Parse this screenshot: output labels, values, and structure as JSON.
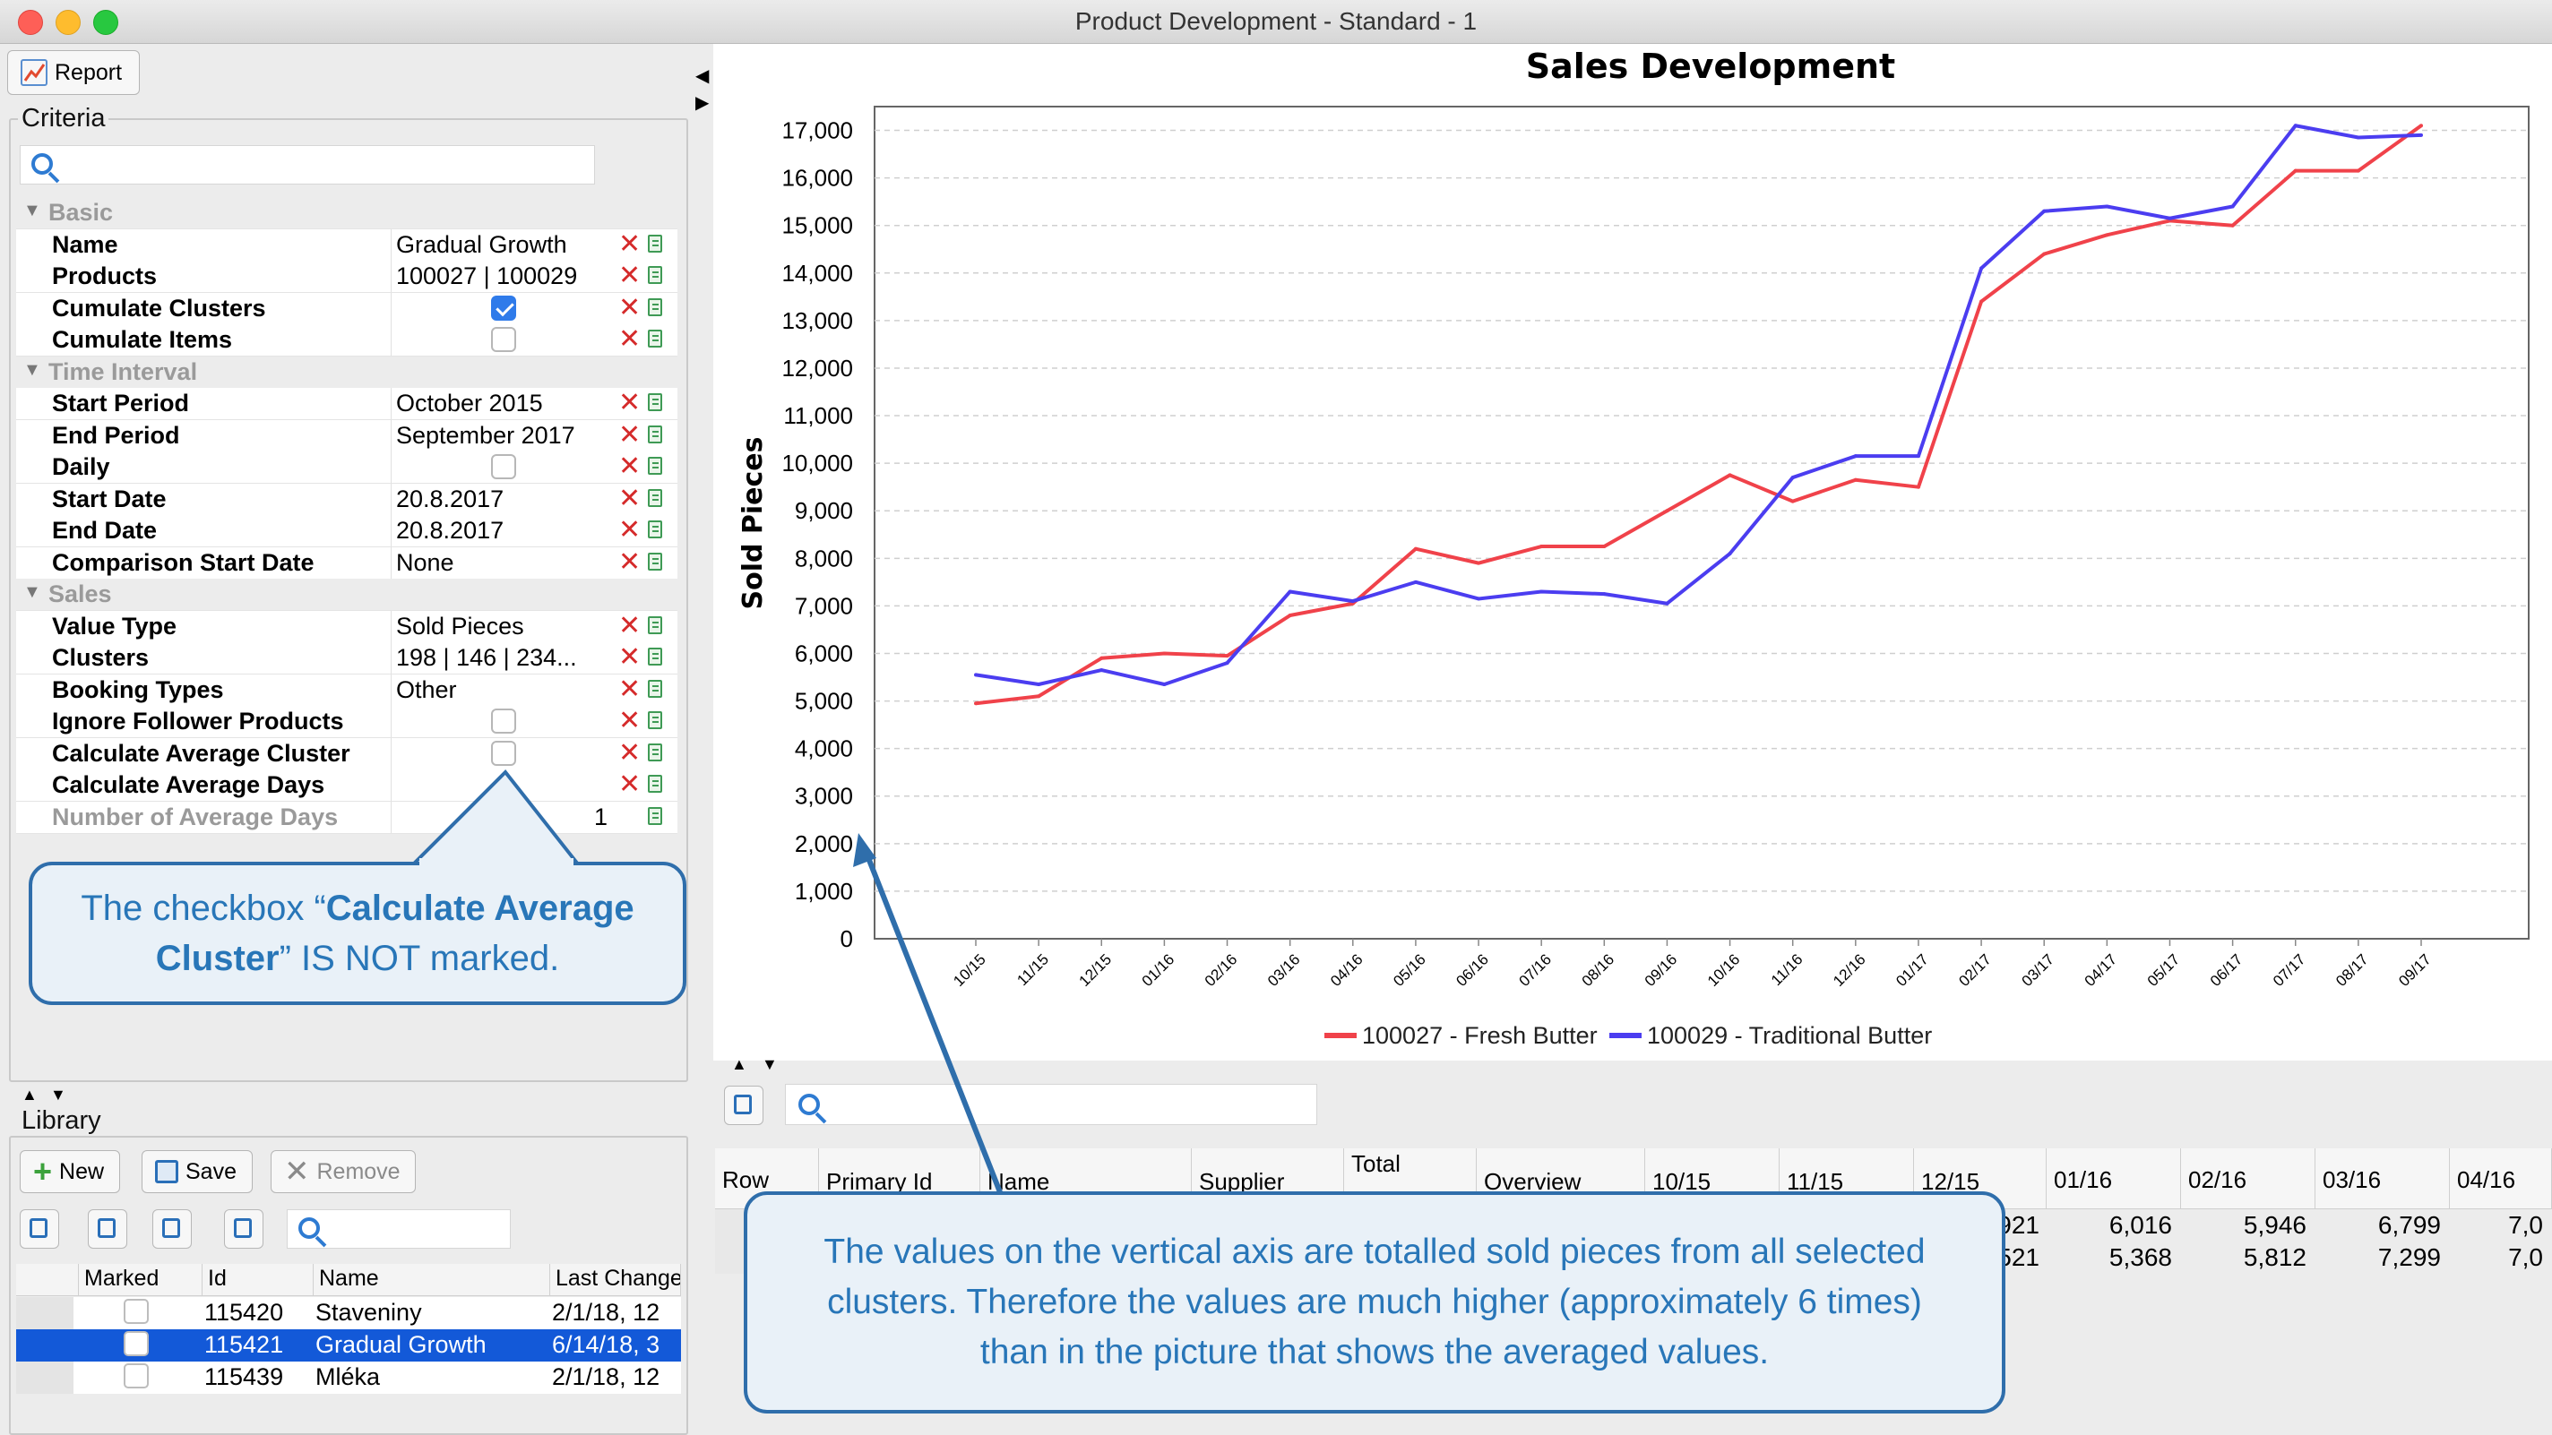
{
  "window": {
    "title": "Product Development - Standard - 1"
  },
  "left": {
    "report_button": "Report",
    "criteria_title": "Criteria",
    "sections": [
      {
        "title": "Basic",
        "rows": [
          {
            "label": "Name",
            "value": "Gradual Growth"
          },
          {
            "label": "Products",
            "value": "100027 | 100029"
          },
          {
            "label": "Cumulate Clusters",
            "checkbox": true
          },
          {
            "label": "Cumulate Items",
            "checkbox": false
          }
        ]
      },
      {
        "title": "Time Interval",
        "rows": [
          {
            "label": "Start Period",
            "value": "October 2015"
          },
          {
            "label": "End Period",
            "value": "September 2017"
          },
          {
            "label": "Daily",
            "checkbox": false
          },
          {
            "label": "Start Date",
            "value": "20.8.2017"
          },
          {
            "label": "End Date",
            "value": "20.8.2017"
          },
          {
            "label": "Comparison Start Date",
            "value": "None"
          }
        ]
      },
      {
        "title": "Sales",
        "rows": [
          {
            "label": "Value Type",
            "value": "Sold Pieces"
          },
          {
            "label": "Clusters",
            "value": "198 | 146 | 234..."
          },
          {
            "label": "Booking Types",
            "value": "Other"
          },
          {
            "label": "Ignore Follower Products",
            "checkbox": false
          },
          {
            "label": "Calculate Average Cluster",
            "checkbox": false
          },
          {
            "label": "Calculate Average Days",
            "value": ""
          },
          {
            "label": "Number of Average Days",
            "value": "1",
            "disabled": true
          }
        ]
      }
    ],
    "library_title": "Library",
    "library_buttons": {
      "new": "New",
      "save": "Save",
      "remove": "Remove"
    },
    "library_columns": [
      "Marked",
      "Id",
      "Name",
      "Last Change"
    ],
    "library_rows": [
      {
        "id": "115420",
        "name": "Staveniny",
        "last_change": "2/1/18, 12",
        "selected": false
      },
      {
        "id": "115421",
        "name": "Gradual Growth",
        "last_change": "6/14/18, 3",
        "selected": true
      },
      {
        "id": "115439",
        "name": "Mléka",
        "last_change": "2/1/18, 12",
        "selected": false
      }
    ]
  },
  "chart_data": {
    "type": "line",
    "title": "Sales Development",
    "ylabel": "Sold Pieces",
    "xlabel": "",
    "ylim": [
      0,
      17500
    ],
    "yticks": [
      "0",
      "1,000",
      "2,000",
      "3,000",
      "4,000",
      "5,000",
      "6,000",
      "7,000",
      "8,000",
      "9,000",
      "10,000",
      "11,000",
      "12,000",
      "13,000",
      "14,000",
      "15,000",
      "16,000",
      "17,000"
    ],
    "categories": [
      "10/15",
      "11/15",
      "12/15",
      "01/16",
      "02/16",
      "03/16",
      "04/16",
      "05/16",
      "06/16",
      "07/16",
      "08/16",
      "09/16",
      "10/16",
      "11/16",
      "12/16",
      "01/17",
      "02/17",
      "03/17",
      "04/17",
      "05/17",
      "06/17",
      "07/17",
      "08/17",
      "09/17"
    ],
    "series": [
      {
        "name": "100027 - Fresh Butter",
        "color": "#f0424a",
        "values": [
          4950,
          5100,
          5900,
          6000,
          5950,
          6800,
          7050,
          8200,
          7900,
          8250,
          8250,
          9000,
          9750,
          9200,
          9650,
          9500,
          13400,
          14400,
          14800,
          15100,
          15000,
          16150,
          16150,
          17100
        ]
      },
      {
        "name": "100029 - Traditional Butter",
        "color": "#4b3df0",
        "values": [
          5550,
          5350,
          5650,
          5350,
          5800,
          7300,
          7100,
          7500,
          7150,
          7300,
          7250,
          7050,
          8100,
          9700,
          10150,
          10150,
          14100,
          15300,
          15400,
          15150,
          15400,
          17100,
          16850,
          16900
        ]
      }
    ],
    "grid": true,
    "legend": "bottom"
  },
  "table": {
    "columns": [
      "Row",
      "Primary Id",
      "Name",
      "Supplier",
      "Total",
      "Overview",
      "10/15",
      "11/15",
      "12/15",
      "01/16",
      "02/16",
      "03/16",
      "04/16"
    ],
    "rows": [
      {
        "c1215": "921",
        "c0116": "6,016",
        "c0216": "5,946",
        "c0316": "6,799",
        "c0416": "7,0"
      },
      {
        "c1215": "521",
        "c0116": "5,368",
        "c0216": "5,812",
        "c0316": "7,299",
        "c0416": "7,0"
      }
    ]
  },
  "callouts": {
    "checkbox": {
      "pre": "The checkbox “",
      "bold": "Calculate Average Cluster",
      "post": "” IS NOT marked."
    },
    "axis": "The values on the vertical axis are totalled sold pieces from all selected clusters. Therefore the values are much higher (approximately 6 times) than in the picture that shows the averaged values."
  },
  "colors": {
    "accent": "#2f7bea",
    "selection": "#1359d8",
    "callout_border": "#2f6eab",
    "callout_text": "#2876b8"
  }
}
